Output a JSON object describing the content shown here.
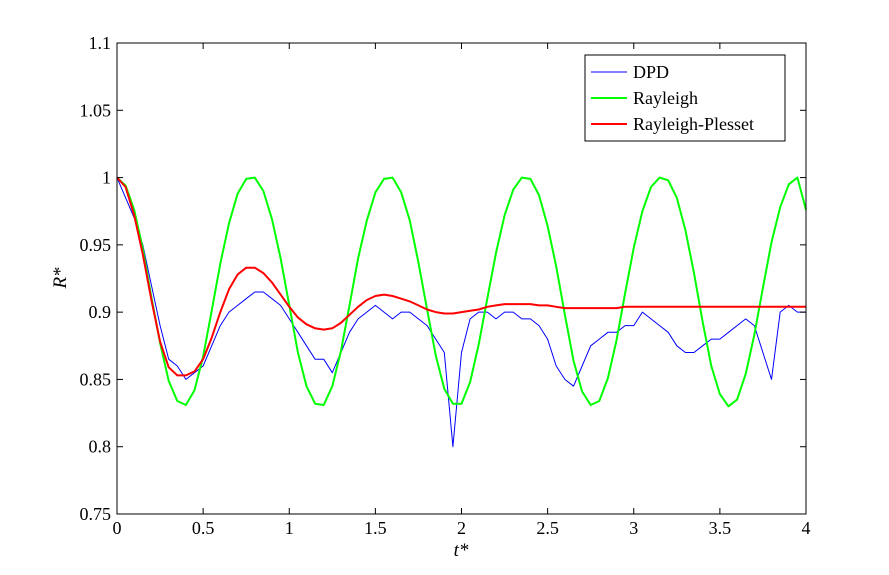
{
  "chart_data": {
    "type": "line",
    "title": "",
    "xlabel": "t*",
    "ylabel": "R*",
    "xlim": [
      0,
      4
    ],
    "ylim": [
      0.75,
      1.1
    ],
    "x_ticks": [
      0,
      0.5,
      1,
      1.5,
      2,
      2.5,
      3,
      3.5,
      4
    ],
    "y_ticks": [
      0.75,
      0.8,
      0.85,
      0.9,
      0.95,
      1,
      1.05,
      1.1
    ],
    "x_tick_labels": [
      "0",
      "0.5",
      "1",
      "1.5",
      "2",
      "2.5",
      "3",
      "3.5",
      "4"
    ],
    "y_tick_labels": [
      "0.75",
      "0.8",
      "0.85",
      "0.9",
      "0.95",
      "1",
      "1.05",
      "1.1"
    ],
    "grid": false,
    "legend_position": "top-right",
    "series": [
      {
        "name": "DPD",
        "color": "#0000ff",
        "x": [
          0,
          0.05,
          0.1,
          0.15,
          0.2,
          0.25,
          0.3,
          0.35,
          0.4,
          0.45,
          0.5,
          0.55,
          0.6,
          0.65,
          0.7,
          0.75,
          0.8,
          0.85,
          0.9,
          0.95,
          1.0,
          1.05,
          1.1,
          1.15,
          1.2,
          1.25,
          1.3,
          1.35,
          1.4,
          1.45,
          1.5,
          1.55,
          1.6,
          1.65,
          1.7,
          1.75,
          1.8,
          1.85,
          1.9,
          1.95,
          2.0,
          2.05,
          2.1,
          2.15,
          2.2,
          2.25,
          2.3,
          2.35,
          2.4,
          2.45,
          2.5,
          2.55,
          2.6,
          2.65,
          2.7,
          2.75,
          2.8,
          2.85,
          2.9,
          2.95,
          3.0,
          3.05,
          3.1,
          3.15,
          3.2,
          3.25,
          3.3,
          3.35,
          3.4,
          3.45,
          3.5,
          3.55,
          3.6,
          3.65,
          3.7,
          3.75,
          3.8,
          3.85,
          3.9,
          3.95,
          4.0
        ],
        "values": [
          1.0,
          0.985,
          0.97,
          0.95,
          0.92,
          0.89,
          0.865,
          0.86,
          0.85,
          0.855,
          0.86,
          0.875,
          0.89,
          0.9,
          0.905,
          0.91,
          0.915,
          0.915,
          0.91,
          0.905,
          0.895,
          0.885,
          0.875,
          0.865,
          0.865,
          0.855,
          0.87,
          0.885,
          0.895,
          0.9,
          0.905,
          0.9,
          0.895,
          0.9,
          0.9,
          0.895,
          0.89,
          0.88,
          0.87,
          0.8,
          0.87,
          0.895,
          0.9,
          0.9,
          0.895,
          0.9,
          0.9,
          0.895,
          0.895,
          0.89,
          0.88,
          0.86,
          0.85,
          0.845,
          0.86,
          0.875,
          0.88,
          0.885,
          0.885,
          0.89,
          0.89,
          0.9,
          0.895,
          0.89,
          0.885,
          0.875,
          0.87,
          0.87,
          0.875,
          0.88,
          0.88,
          0.885,
          0.89,
          0.895,
          0.89,
          0.87,
          0.85,
          0.9,
          0.905,
          0.9,
          0.9
        ]
      },
      {
        "name": "Rayleigh",
        "color": "#00ff00",
        "x": [
          0,
          0.05,
          0.1,
          0.15,
          0.2,
          0.25,
          0.3,
          0.35,
          0.4,
          0.45,
          0.5,
          0.55,
          0.6,
          0.65,
          0.7,
          0.75,
          0.8,
          0.85,
          0.9,
          0.95,
          1.0,
          1.05,
          1.1,
          1.15,
          1.2,
          1.25,
          1.3,
          1.35,
          1.4,
          1.45,
          1.5,
          1.55,
          1.6,
          1.65,
          1.7,
          1.75,
          1.8,
          1.85,
          1.9,
          1.95,
          2.0,
          2.05,
          2.1,
          2.15,
          2.2,
          2.25,
          2.3,
          2.35,
          2.4,
          2.45,
          2.5,
          2.55,
          2.6,
          2.65,
          2.7,
          2.75,
          2.8,
          2.85,
          2.9,
          2.95,
          3.0,
          3.05,
          3.1,
          3.15,
          3.2,
          3.25,
          3.3,
          3.35,
          3.4,
          3.45,
          3.5,
          3.55,
          3.6,
          3.65,
          3.7,
          3.75,
          3.8,
          3.85,
          3.9,
          3.95,
          4.0
        ],
        "values": [
          1.0,
          0.994,
          0.976,
          0.947,
          0.911,
          0.877,
          0.849,
          0.834,
          0.831,
          0.842,
          0.867,
          0.901,
          0.936,
          0.966,
          0.988,
          0.999,
          1.0,
          0.99,
          0.969,
          0.94,
          0.905,
          0.87,
          0.845,
          0.832,
          0.831,
          0.845,
          0.871,
          0.905,
          0.94,
          0.968,
          0.989,
          0.999,
          1.0,
          0.989,
          0.968,
          0.937,
          0.902,
          0.868,
          0.843,
          0.832,
          0.832,
          0.848,
          0.876,
          0.91,
          0.944,
          0.972,
          0.991,
          1.0,
          0.999,
          0.987,
          0.964,
          0.934,
          0.898,
          0.864,
          0.841,
          0.831,
          0.834,
          0.851,
          0.879,
          0.914,
          0.948,
          0.975,
          0.993,
          1.0,
          0.998,
          0.985,
          0.961,
          0.929,
          0.893,
          0.86,
          0.839,
          0.83,
          0.835,
          0.854,
          0.883,
          0.918,
          0.952,
          0.978,
          0.995,
          1.0,
          0.976
        ]
      },
      {
        "name": "Rayleigh-Plesset",
        "color": "#ff0000",
        "x": [
          0,
          0.05,
          0.1,
          0.15,
          0.2,
          0.25,
          0.3,
          0.35,
          0.4,
          0.45,
          0.5,
          0.55,
          0.6,
          0.65,
          0.7,
          0.75,
          0.8,
          0.85,
          0.9,
          0.95,
          1.0,
          1.05,
          1.1,
          1.15,
          1.2,
          1.25,
          1.3,
          1.35,
          1.4,
          1.45,
          1.5,
          1.55,
          1.6,
          1.65,
          1.7,
          1.75,
          1.8,
          1.85,
          1.9,
          1.95,
          2.0,
          2.05,
          2.1,
          2.15,
          2.2,
          2.25,
          2.3,
          2.35,
          2.4,
          2.45,
          2.5,
          2.55,
          2.6,
          2.65,
          2.7,
          2.75,
          2.8,
          2.85,
          2.9,
          2.95,
          3.0,
          3.05,
          3.1,
          3.15,
          3.2,
          3.25,
          3.3,
          3.35,
          3.4,
          3.45,
          3.5,
          3.55,
          3.6,
          3.65,
          3.7,
          3.75,
          3.8,
          3.85,
          3.9,
          3.95,
          4.0
        ],
        "values": [
          1.0,
          0.993,
          0.972,
          0.943,
          0.909,
          0.878,
          0.859,
          0.853,
          0.853,
          0.856,
          0.865,
          0.881,
          0.9,
          0.917,
          0.928,
          0.933,
          0.933,
          0.929,
          0.922,
          0.913,
          0.904,
          0.896,
          0.891,
          0.888,
          0.887,
          0.888,
          0.892,
          0.898,
          0.904,
          0.909,
          0.912,
          0.913,
          0.912,
          0.91,
          0.908,
          0.905,
          0.902,
          0.9,
          0.899,
          0.899,
          0.9,
          0.901,
          0.902,
          0.904,
          0.905,
          0.906,
          0.906,
          0.906,
          0.906,
          0.905,
          0.905,
          0.904,
          0.903,
          0.903,
          0.903,
          0.903,
          0.903,
          0.903,
          0.903,
          0.904,
          0.904,
          0.904,
          0.904,
          0.904,
          0.904,
          0.904,
          0.904,
          0.904,
          0.904,
          0.904,
          0.904,
          0.904,
          0.904,
          0.904,
          0.904,
          0.904,
          0.904,
          0.904,
          0.904,
          0.904,
          0.904
        ]
      }
    ]
  }
}
